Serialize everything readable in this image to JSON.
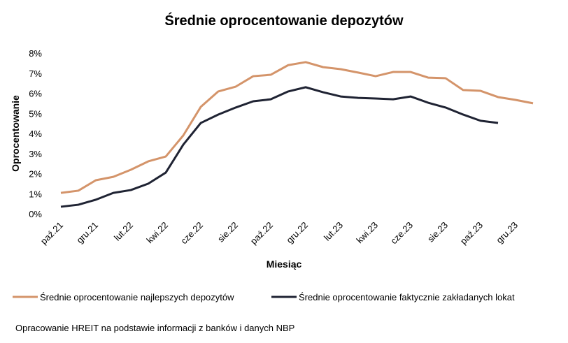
{
  "chart_data": {
    "type": "line",
    "title": "Średnie oprocentowanie depozytów",
    "xlabel": "Miesiąc",
    "ylabel": "Oprocentowanie",
    "note": "Opracowanie HREIT na podstawie informacji z banków i danych NBP",
    "categories": [
      "paź.21",
      null,
      "gru.21",
      null,
      "lut.22",
      null,
      "kwi.22",
      null,
      "cze.22",
      null,
      "sie.22",
      null,
      "paź.22",
      null,
      "gru.22",
      null,
      "lut.23",
      null,
      "kwi.23",
      null,
      "cze.23",
      null,
      "sie.23",
      null,
      "paź.23",
      null,
      "gru.23",
      null
    ],
    "series": [
      {
        "name": "Średnie oprocentowanie najlepszych depozytów",
        "color": "#d4946a",
        "values": [
          1.04,
          1.15,
          1.67,
          1.84,
          2.19,
          2.61,
          2.85,
          3.9,
          5.32,
          6.09,
          6.33,
          6.85,
          6.92,
          7.4,
          7.55,
          7.3,
          7.2,
          7.03,
          6.85,
          7.06,
          7.06,
          6.78,
          6.75,
          6.16,
          6.12,
          5.81,
          5.67,
          5.5
        ]
      },
      {
        "name": "Średnie oprocentowanie faktycznie zakładanych lokat",
        "color": "#1f2333",
        "values": [
          0.35,
          0.45,
          0.7,
          1.04,
          1.18,
          1.5,
          2.05,
          3.44,
          4.52,
          4.94,
          5.29,
          5.6,
          5.7,
          6.09,
          6.3,
          6.05,
          5.84,
          5.77,
          5.74,
          5.7,
          5.84,
          5.53,
          5.29,
          4.94,
          4.63,
          4.52,
          null,
          null
        ]
      }
    ],
    "ylim": [
      0,
      8
    ],
    "yticks": [
      {
        "value": 0,
        "label": "0%"
      },
      {
        "value": 1,
        "label": "1%"
      },
      {
        "value": 2,
        "label": "2%"
      },
      {
        "value": 3,
        "label": "3%"
      },
      {
        "value": 4,
        "label": "4%"
      },
      {
        "value": 5,
        "label": "5%"
      },
      {
        "value": 6,
        "label": "6%"
      },
      {
        "value": 7,
        "label": "7%"
      },
      {
        "value": 8,
        "label": "8%"
      }
    ],
    "legend": "bottom"
  }
}
